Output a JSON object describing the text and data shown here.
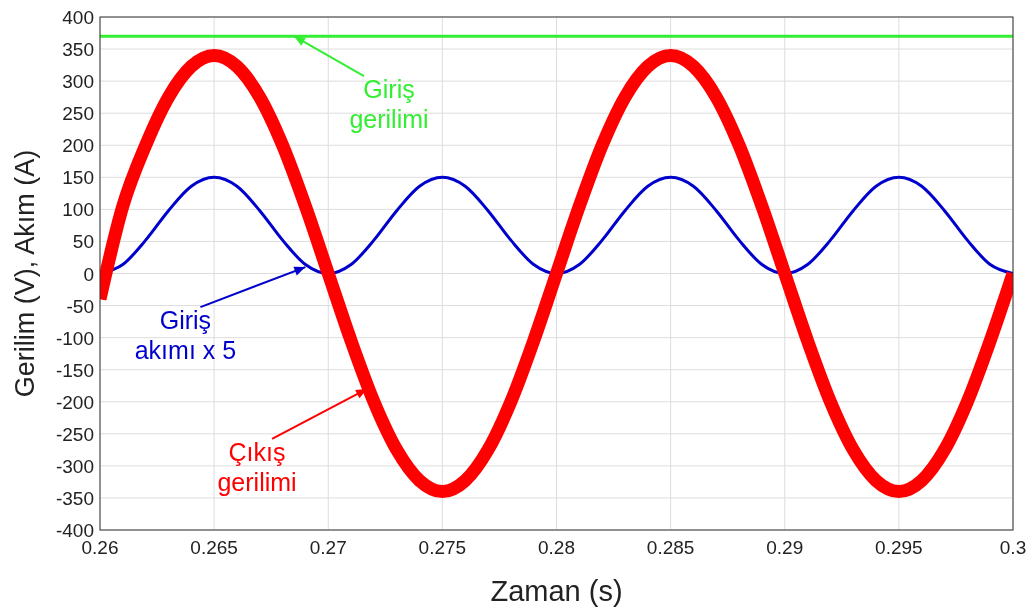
{
  "chart_data": {
    "type": "line",
    "xlabel": "Zaman (s)",
    "ylabel": "Gerilim (V), Akım (A)",
    "x": [
      0.26,
      0.261,
      0.262,
      0.263,
      0.264,
      0.265,
      0.266,
      0.267,
      0.268,
      0.269,
      0.27,
      0.271,
      0.272,
      0.273,
      0.274,
      0.275,
      0.276,
      0.277,
      0.278,
      0.279,
      0.28,
      0.281,
      0.282,
      0.283,
      0.284,
      0.285,
      0.286,
      0.287,
      0.288,
      0.289,
      0.29,
      0.291,
      0.292,
      0.293,
      0.294,
      0.295,
      0.296,
      0.297,
      0.298,
      0.299,
      0.3
    ],
    "series": [
      {
        "color": "#33ee33",
        "x": [
          0.26,
          0.3
        ],
        "values": [
          370,
          370
        ]
      },
      {
        "color": "#0000cc",
        "values": [
          0,
          14,
          52,
          98,
          136,
          150,
          136,
          98,
          52,
          14,
          0,
          14,
          52,
          98,
          136,
          150,
          136,
          98,
          52,
          14,
          0,
          14,
          52,
          98,
          136,
          150,
          136,
          98,
          52,
          14,
          0,
          14,
          52,
          98,
          136,
          150,
          136,
          98,
          52,
          14,
          0
        ]
      },
      {
        "color": "#ff0000",
        "values": [
          -40,
          105,
          200,
          275,
          323,
          340,
          323,
          275,
          200,
          105,
          0,
          -105,
          -200,
          -275,
          -323,
          -340,
          -323,
          -275,
          -200,
          -105,
          0,
          105,
          200,
          275,
          323,
          340,
          323,
          275,
          200,
          105,
          0,
          -105,
          -200,
          -275,
          -323,
          -340,
          -323,
          -275,
          -200,
          -105,
          0
        ]
      }
    ],
    "annotations": [
      {
        "text": "Giriş\ngerilimi",
        "x": 0.2685,
        "y": 370
      },
      {
        "text": "Giriş\nakımı x 5",
        "x": 0.269,
        "y": 10
      },
      {
        "text": "Çıkış\ngerilimi",
        "x": 0.2717,
        "y": -180
      }
    ],
    "xlim": [
      0.26,
      0.3
    ],
    "xticks": [
      0.26,
      0.265,
      0.27,
      0.275,
      0.28,
      0.285,
      0.29,
      0.295,
      0.3
    ],
    "ylim": [
      -400,
      400
    ],
    "yticks": [
      -400,
      -350,
      -300,
      -250,
      -200,
      -150,
      -100,
      -50,
      0,
      50,
      100,
      150,
      200,
      250,
      300,
      350,
      400
    ],
    "grid": true
  }
}
